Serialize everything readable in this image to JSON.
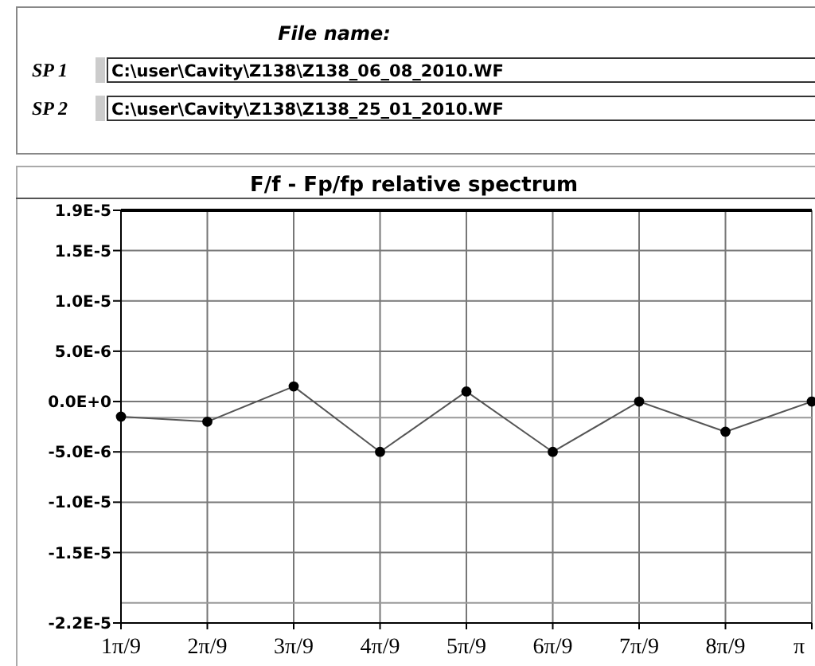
{
  "chart_data": {
    "type": "line",
    "title": "F/f - Fp/fp relative spectrum",
    "annotations": [
      "File name:",
      "SP 1",
      "C:\\user\\Cavity\\Z138\\Z138_06_08_2010.WF",
      "SP 2",
      "C:\\user\\Cavity\\Z138\\Z138_25_01_2010.WF"
    ],
    "categories": [
      "1π/9",
      "2π/9",
      "3π/9",
      "4π/9",
      "5π/9",
      "6π/9",
      "7π/9",
      "8π/9",
      "π"
    ],
    "series": [
      {
        "color": "#555555",
        "values": [
          -1.5e-06,
          -2e-06,
          1.5e-06,
          -5e-06,
          1e-06,
          -5e-06,
          0,
          -3e-06,
          0
        ]
      }
    ],
    "marker": "circle",
    "ylim": [
      -2.2e-05,
      1.9e-05
    ],
    "yticks": [
      {
        "value": -2.2e-05,
        "label": "-2.2E-5"
      },
      {
        "value": -1.5e-05,
        "label": "-1.5E-5"
      },
      {
        "value": -1e-05,
        "label": "-1.0E-5"
      },
      {
        "value": -5e-06,
        "label": "-5.0E-6"
      },
      {
        "value": 0,
        "label": "0.0E+0"
      },
      {
        "value": 5e-06,
        "label": "5.0E-6"
      },
      {
        "value": 1e-05,
        "label": "1.0E-5"
      },
      {
        "value": 1.5e-05,
        "label": "1.5E-5"
      },
      {
        "value": 1.9e-05,
        "label": "1.9E-5"
      }
    ],
    "ref_lines": [
      {
        "axis": "y",
        "value": -1.6e-06,
        "color": "#999999"
      },
      {
        "axis": "y",
        "value": -2e-05,
        "color": "#999999"
      }
    ],
    "grid": true
  }
}
